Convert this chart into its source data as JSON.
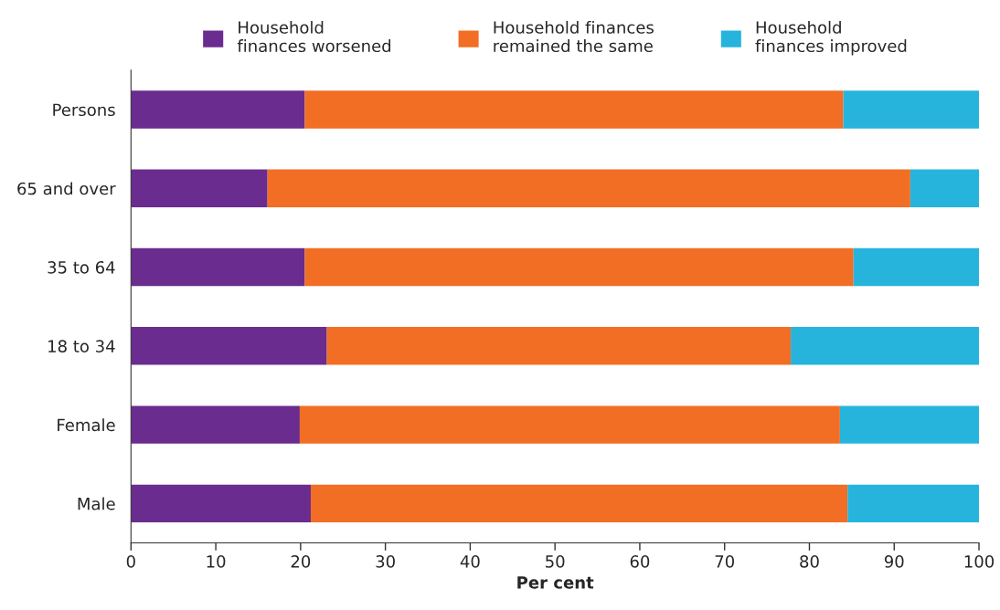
{
  "chart_data": {
    "type": "bar",
    "orientation": "horizontal",
    "stacked": true,
    "xlabel": "Per cent",
    "categories": [
      "Persons",
      "65 and over",
      "35 to 64",
      "18 to 34",
      "Female",
      "Male"
    ],
    "series": [
      {
        "name": "Household\nfinances worsened",
        "color": "#6a2c8e",
        "values": [
          20.5,
          16.1,
          20.5,
          23.1,
          19.9,
          21.2
        ]
      },
      {
        "name": "Household finances\nremained the same",
        "color": "#f26e24",
        "values": [
          63.5,
          75.8,
          64.7,
          54.7,
          63.7,
          63.3
        ]
      },
      {
        "name": "Household\nfinances improved",
        "color": "#27b4dc",
        "values": [
          16.0,
          8.1,
          14.8,
          22.2,
          16.4,
          15.5
        ]
      }
    ],
    "xlim": [
      0,
      100
    ],
    "xticks": [
      0,
      10,
      20,
      30,
      40,
      50,
      60,
      70,
      80,
      90,
      100
    ],
    "grid": false,
    "legend": "top"
  }
}
